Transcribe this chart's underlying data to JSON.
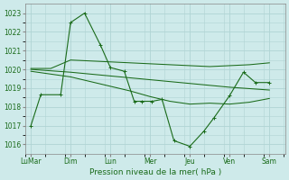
{
  "background_color": "#ceeaea",
  "grid_color": "#b0d4d4",
  "line_color": "#1a6b1a",
  "xlabel": "Pression niveau de la mer( hPa )",
  "ylim": [
    1015.5,
    1023.5
  ],
  "yticks": [
    1016,
    1017,
    1018,
    1019,
    1020,
    1021,
    1022,
    1023
  ],
  "x_labels": [
    "LuMar",
    "Dim",
    "Lun",
    "Mer",
    "Jeu",
    "Ven",
    "Sam"
  ],
  "x_tick_pos": [
    0,
    1,
    2,
    3,
    4,
    5,
    6
  ],
  "xlim": [
    -0.15,
    6.4
  ],
  "line1_x": [
    0.0,
    0.25,
    0.75,
    1.0,
    1.35,
    1.75,
    2.0,
    2.35,
    2.6,
    2.8,
    3.05,
    3.3,
    3.6,
    4.0,
    4.35,
    4.6,
    5.0,
    5.35,
    5.65,
    6.0
  ],
  "line1_y": [
    1017.0,
    1018.65,
    1018.65,
    1022.5,
    1023.0,
    1021.3,
    1020.1,
    1019.9,
    1018.3,
    1018.3,
    1018.3,
    1018.4,
    1016.2,
    1015.9,
    1016.7,
    1017.4,
    1018.6,
    1019.85,
    1019.3,
    1019.3
  ],
  "line2_x": [
    0.0,
    0.5,
    1.0,
    1.5,
    2.0,
    2.5,
    3.0,
    3.5,
    4.0,
    4.5,
    5.0,
    5.5,
    6.0
  ],
  "line2_y": [
    1020.05,
    1020.05,
    1020.5,
    1020.45,
    1020.4,
    1020.35,
    1020.3,
    1020.25,
    1020.2,
    1020.15,
    1020.2,
    1020.25,
    1020.35
  ],
  "line3_x": [
    0.0,
    1.0,
    2.0,
    3.0,
    4.0,
    5.0,
    6.0
  ],
  "line3_y": [
    1020.0,
    1019.85,
    1019.65,
    1019.45,
    1019.25,
    1019.05,
    1018.9
  ],
  "line4_x": [
    0.0,
    0.5,
    1.0,
    1.5,
    2.0,
    2.5,
    3.0,
    3.5,
    4.0,
    4.5,
    5.0,
    5.5,
    6.0
  ],
  "line4_y": [
    1019.9,
    1019.75,
    1019.6,
    1019.35,
    1019.1,
    1018.85,
    1018.55,
    1018.3,
    1018.15,
    1018.2,
    1018.15,
    1018.25,
    1018.45
  ]
}
